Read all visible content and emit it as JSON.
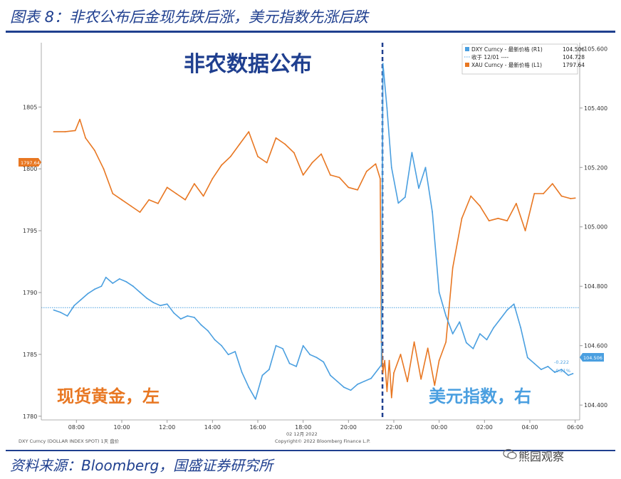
{
  "figure_title": "图表 8：非农公布后金现先跌后涨，美元指数先涨后跌",
  "source": "资料来源：Bloomberg，国盛证券研究所",
  "watermark": "熊园观察",
  "colors": {
    "gold": "#e87722",
    "usd": "#4a9fe0",
    "brand": "#1f3f8f"
  },
  "chart_data": {
    "type": "line",
    "annotation_title": "非农数据公布",
    "label_left": "现货黄金，左",
    "label_right": "美元指数，右",
    "x_ticks": [
      "08:00",
      "10:00",
      "12:00",
      "14:00",
      "16:00",
      "18:00",
      "20:00",
      "22:00",
      "00:00",
      "02:00",
      "04:00",
      "06:00"
    ],
    "x_date_label": "02 12月 2022",
    "footer_left": "DXY Curncy (DOLLAR INDEX SPOT) 1天 盘价",
    "footer_center": "Copyright© 2022 Bloomberg Finance L.P.",
    "y_left": {
      "ticks": [
        1780,
        1785,
        1790,
        1795,
        1800,
        1805
      ],
      "range": [
        1779.7,
        1810.2
      ],
      "last_value_label": "1797.64"
    },
    "y_right": {
      "ticks": [
        "104.400",
        "104.600",
        "104.800",
        "105.000",
        "105.200",
        "105.400",
        "105.600"
      ],
      "range": [
        104.35,
        105.62
      ],
      "last_value_label": "104.506",
      "change_labels": [
        "-0.222",
        "-0.21%"
      ]
    },
    "reference_line": {
      "label": "收于 12/01 ----",
      "value": 104.728
    },
    "legend": [
      {
        "name": "DXY Curncy - 最新价格 (R1)",
        "value": "104.506"
      },
      {
        "name": "收于 12/01 ----",
        "value": "104.728"
      },
      {
        "name": "XAU Curncy - 最新价格 (L1)",
        "value": "1797.64"
      }
    ],
    "event_x": "21:30",
    "series": [
      {
        "name": "XAU Curncy - 最新价格 (L1)",
        "axis": "left",
        "x_hours": [
          7.0,
          7.5,
          7.95,
          8.15,
          8.4,
          8.8,
          9.2,
          9.6,
          10.0,
          10.4,
          10.8,
          11.2,
          11.6,
          12.0,
          12.4,
          12.8,
          13.2,
          13.6,
          14.0,
          14.4,
          14.8,
          15.2,
          15.6,
          16.0,
          16.4,
          16.8,
          17.2,
          17.6,
          18.0,
          18.4,
          18.8,
          19.2,
          19.6,
          20.0,
          20.4,
          20.8,
          21.2,
          21.4,
          21.45,
          21.52,
          21.6,
          21.7,
          21.8,
          21.9,
          22.0,
          22.3,
          22.6,
          22.9,
          23.2,
          23.5,
          23.8,
          24.0,
          24.3,
          24.6,
          25.0,
          25.4,
          25.8,
          26.2,
          26.6,
          27.0,
          27.4,
          27.8,
          28.2,
          28.6,
          29.0,
          29.4,
          29.8,
          30.0
        ],
        "values": [
          1803.0,
          1803.0,
          1803.1,
          1804.0,
          1802.5,
          1801.5,
          1800.0,
          1798.0,
          1797.5,
          1797.0,
          1796.5,
          1797.5,
          1797.2,
          1798.5,
          1798.0,
          1797.5,
          1798.8,
          1797.8,
          1799.2,
          1800.3,
          1801.0,
          1802.0,
          1803.0,
          1801.0,
          1800.5,
          1802.5,
          1802.0,
          1801.3,
          1799.5,
          1800.5,
          1801.2,
          1799.5,
          1799.3,
          1798.5,
          1798.3,
          1799.8,
          1800.4,
          1799.2,
          1786.0,
          1783.5,
          1784.5,
          1782.0,
          1784.5,
          1781.5,
          1783.5,
          1785.0,
          1782.8,
          1786.0,
          1783.0,
          1785.5,
          1782.5,
          1784.5,
          1786.0,
          1792.0,
          1796.0,
          1797.8,
          1797.0,
          1795.8,
          1796.0,
          1795.8,
          1797.2,
          1795.0,
          1798.0,
          1798.0,
          1798.8,
          1797.8,
          1797.6,
          1797.64
        ]
      },
      {
        "name": "DXY Curncy - 最新价格 (R1)",
        "axis": "right",
        "x_hours": [
          7.0,
          7.3,
          7.6,
          7.9,
          8.2,
          8.5,
          8.8,
          9.1,
          9.3,
          9.6,
          9.9,
          10.2,
          10.5,
          10.8,
          11.1,
          11.4,
          11.7,
          12.0,
          12.3,
          12.6,
          12.9,
          13.2,
          13.5,
          13.8,
          14.1,
          14.4,
          14.7,
          15.0,
          15.3,
          15.6,
          15.9,
          16.2,
          16.5,
          16.8,
          17.1,
          17.4,
          17.7,
          18.0,
          18.3,
          18.6,
          18.9,
          19.2,
          19.5,
          19.8,
          20.1,
          20.4,
          20.7,
          21.0,
          21.3,
          21.45,
          21.52,
          21.7,
          21.9,
          22.2,
          22.5,
          22.8,
          23.1,
          23.4,
          23.7,
          24.0,
          24.3,
          24.6,
          24.9,
          25.2,
          25.5,
          25.8,
          26.1,
          26.4,
          26.7,
          27.0,
          27.3,
          27.6,
          27.9,
          28.2,
          28.5,
          28.8,
          29.1,
          29.4,
          29.7,
          29.9
        ],
        "values": [
          104.72,
          104.712,
          104.7,
          104.735,
          104.755,
          104.775,
          104.79,
          104.8,
          104.83,
          104.81,
          104.825,
          104.815,
          104.8,
          104.78,
          104.76,
          104.745,
          104.735,
          104.74,
          104.71,
          104.69,
          104.7,
          104.695,
          104.67,
          104.65,
          104.62,
          104.6,
          104.57,
          104.58,
          104.51,
          104.46,
          104.42,
          104.5,
          104.52,
          104.6,
          104.59,
          104.54,
          104.53,
          104.6,
          104.57,
          104.56,
          104.545,
          104.5,
          104.48,
          104.46,
          104.45,
          104.47,
          104.48,
          104.49,
          104.52,
          104.535,
          105.55,
          105.4,
          105.2,
          105.08,
          105.1,
          105.25,
          105.13,
          105.2,
          105.05,
          104.78,
          104.7,
          104.64,
          104.68,
          104.61,
          104.59,
          104.64,
          104.62,
          104.66,
          104.69,
          104.72,
          104.74,
          104.66,
          104.56,
          104.54,
          104.52,
          104.53,
          104.51,
          104.52,
          104.5,
          104.506
        ]
      }
    ]
  }
}
